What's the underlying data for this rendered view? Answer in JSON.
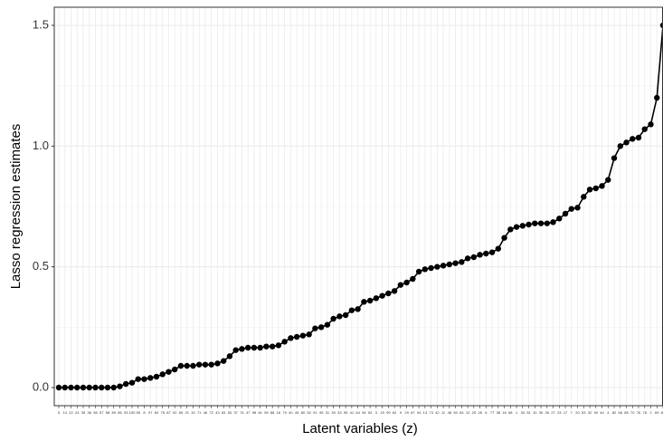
{
  "chart_data": {
    "type": "line",
    "x_label": "Latent variables (z)",
    "y_label": "Lasso regression estimates",
    "categories": [
      "5",
      "14",
      "22",
      "24",
      "35",
      "36",
      "56",
      "57",
      "58",
      "89",
      "86",
      "93",
      "100",
      "55",
      "8",
      "97",
      "60",
      "75",
      "87",
      "92",
      "65",
      "21",
      "19",
      "71",
      "46",
      "72",
      "43",
      "83",
      "63",
      "37",
      "74",
      "47",
      "98",
      "61",
      "59",
      "88",
      "16",
      "79",
      "40",
      "45",
      "80",
      "52",
      "91",
      "49",
      "31",
      "39",
      "33",
      "95",
      "41",
      "64",
      "96",
      "54",
      "3",
      "15",
      "99",
      "62",
      "9",
      "29",
      "67",
      "94",
      "13",
      "73",
      "42",
      "11",
      "48",
      "50",
      "84",
      "12",
      "25",
      "28",
      "6",
      "77",
      "38",
      "18",
      "68",
      "1",
      "34",
      "51",
      "10",
      "30",
      "26",
      "27",
      "23",
      "17",
      "7",
      "20",
      "53",
      "32",
      "90",
      "44",
      "4",
      "82",
      "66",
      "85",
      "70",
      "76",
      "78",
      "2",
      "69",
      "81"
    ],
    "series": [
      {
        "color": "#000000",
        "values": [
          0,
          0,
          0,
          0,
          0,
          0,
          0,
          0,
          0,
          0,
          0.005,
          0.015,
          0.02,
          0.035,
          0.035,
          0.04,
          0.045,
          0.055,
          0.065,
          0.075,
          0.09,
          0.09,
          0.09,
          0.095,
          0.095,
          0.095,
          0.1,
          0.11,
          0.13,
          0.155,
          0.16,
          0.165,
          0.165,
          0.165,
          0.17,
          0.17,
          0.175,
          0.19,
          0.205,
          0.21,
          0.215,
          0.22,
          0.245,
          0.25,
          0.26,
          0.285,
          0.295,
          0.3,
          0.32,
          0.325,
          0.355,
          0.36,
          0.37,
          0.38,
          0.39,
          0.4,
          0.425,
          0.435,
          0.45,
          0.48,
          0.49,
          0.495,
          0.5,
          0.505,
          0.51,
          0.515,
          0.52,
          0.535,
          0.54,
          0.55,
          0.555,
          0.56,
          0.575,
          0.62,
          0.655,
          0.665,
          0.67,
          0.675,
          0.68,
          0.68,
          0.68,
          0.685,
          0.7,
          0.72,
          0.74,
          0.745,
          0.79,
          0.82,
          0.825,
          0.835,
          0.86,
          0.95,
          1.0,
          1.015,
          1.03,
          1.035,
          1.07,
          1.09,
          1.2,
          1.5
        ]
      }
    ],
    "ylim": [
      -0.075,
      1.575
    ],
    "yticks": [
      {
        "value": 0,
        "label": "0.0"
      },
      {
        "value": 0.5,
        "label": "0.5"
      },
      {
        "value": 1,
        "label": "1.0"
      },
      {
        "value": 1.5,
        "label": "1.5"
      }
    ],
    "grid": true
  }
}
